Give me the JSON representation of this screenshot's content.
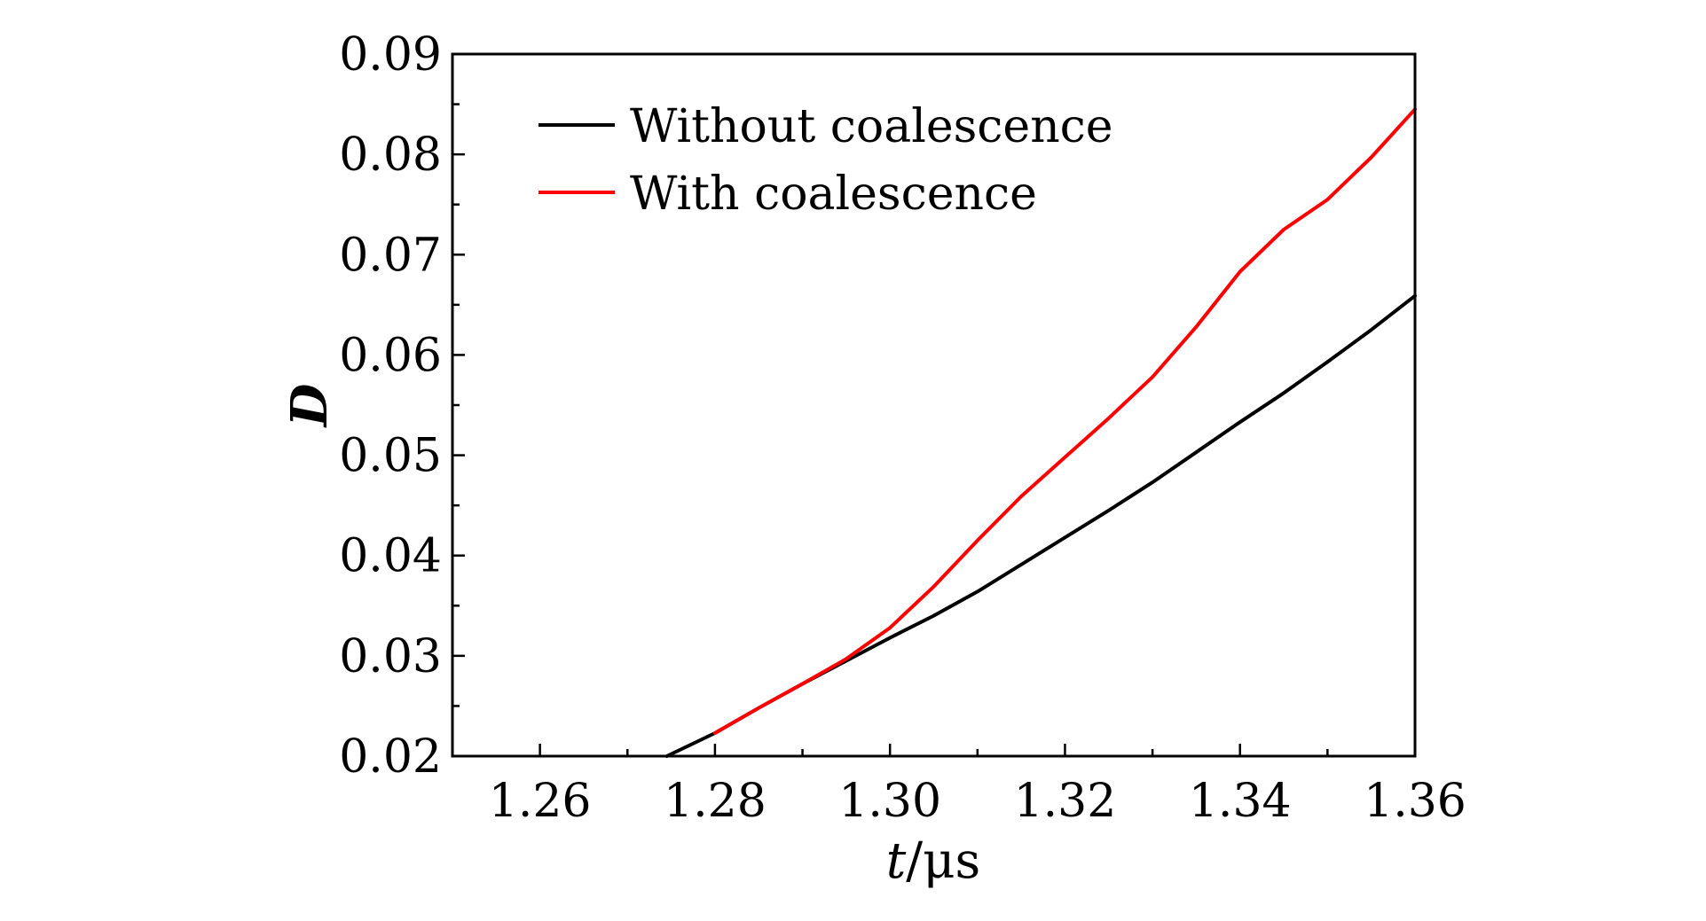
{
  "chart_data": {
    "type": "line",
    "xlabel": "t/μs",
    "ylabel": "D",
    "xlim": [
      1.25,
      1.36
    ],
    "ylim": [
      0.02,
      0.09
    ],
    "x_ticks": [
      "1.26",
      "1.28",
      "1.30",
      "1.32",
      "1.34",
      "1.36"
    ],
    "y_ticks": [
      "0.02",
      "0.03",
      "0.04",
      "0.05",
      "0.06",
      "0.07",
      "0.08",
      "0.09"
    ],
    "grid": false,
    "legend_position": "top-left",
    "series": [
      {
        "name": "Without coalescence",
        "color": "#000000",
        "x": [
          1.2745,
          1.28,
          1.285,
          1.29,
          1.295,
          1.3,
          1.305,
          1.31,
          1.315,
          1.32,
          1.325,
          1.33,
          1.335,
          1.34,
          1.345,
          1.35,
          1.355,
          1.36
        ],
        "y": [
          0.02,
          0.0223,
          0.0248,
          0.0272,
          0.0295,
          0.0318,
          0.034,
          0.0364,
          0.0391,
          0.0418,
          0.0445,
          0.0473,
          0.0503,
          0.0533,
          0.0562,
          0.0593,
          0.0625,
          0.0659
        ]
      },
      {
        "name": "With coalescence",
        "color": "#ff0000",
        "x": [
          1.28,
          1.285,
          1.29,
          1.295,
          1.3,
          1.305,
          1.31,
          1.315,
          1.32,
          1.325,
          1.33,
          1.335,
          1.34,
          1.345,
          1.35,
          1.355,
          1.36
        ],
        "y": [
          0.0223,
          0.0248,
          0.0272,
          0.0297,
          0.0328,
          0.0369,
          0.0415,
          0.0459,
          0.0498,
          0.0537,
          0.0578,
          0.0628,
          0.0683,
          0.0725,
          0.0755,
          0.0797,
          0.0845
        ]
      }
    ]
  }
}
